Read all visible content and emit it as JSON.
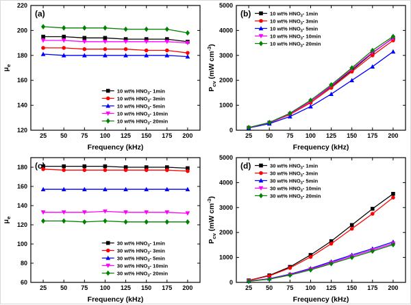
{
  "page": {
    "background": "#ffffff",
    "border_color": "#d9d9d9"
  },
  "chart_data": [
    {
      "panel": "(a)",
      "type": "line",
      "xlabel": "Frequency (kHz)",
      "ylabel": "μ_{e}",
      "x": [
        25,
        50,
        75,
        100,
        125,
        150,
        175,
        200
      ],
      "xticks": [
        25,
        50,
        75,
        100,
        125,
        150,
        175,
        200
      ],
      "yticks": [
        120,
        140,
        160,
        180,
        200,
        220
      ],
      "xlim": [
        10,
        215
      ],
      "ylim": [
        120,
        220
      ],
      "grid": false,
      "legend_pos": "bottom-right",
      "series": [
        {
          "name": "10 wt% HNO_{3}- 1min",
          "color": "#000000",
          "marker": "square",
          "values": [
            195,
            195,
            194,
            194,
            193,
            193,
            193,
            191
          ]
        },
        {
          "name": "10 wt% HNO_{3}- 3min",
          "color": "#ff0000",
          "marker": "circle",
          "values": [
            186,
            186,
            185,
            185,
            185,
            184,
            184,
            182
          ]
        },
        {
          "name": "10 wt% HNO_{3}- 5min",
          "color": "#0000ff",
          "marker": "triangle-up",
          "values": [
            181,
            180,
            180,
            180,
            180,
            180,
            180,
            179
          ]
        },
        {
          "name": "10 wt% HNO_{3}- 10min",
          "color": "#ff00ff",
          "marker": "triangle-down",
          "values": [
            192,
            192,
            191,
            191,
            191,
            191,
            191,
            190
          ]
        },
        {
          "name": "10 wt% HNO_{3}- 20min",
          "color": "#008000",
          "marker": "diamond",
          "values": [
            203,
            202,
            202,
            202,
            201,
            201,
            201,
            198
          ]
        }
      ]
    },
    {
      "panel": "(b)",
      "type": "line",
      "xlabel": "Frequency (kHz)",
      "ylabel": "P_{cv} (mW cm^{-3})",
      "x": [
        25,
        50,
        75,
        100,
        125,
        150,
        175,
        200
      ],
      "xticks": [
        25,
        50,
        75,
        100,
        125,
        150,
        175,
        200
      ],
      "yticks": [
        0,
        1000,
        2000,
        3000,
        4000,
        5000
      ],
      "xlim": [
        10,
        215
      ],
      "ylim": [
        0,
        5000
      ],
      "grid": false,
      "legend_pos": "top-left",
      "series": [
        {
          "name": "10 wt% HNO_{3}- 1min",
          "color": "#000000",
          "marker": "square",
          "values": [
            100,
            300,
            650,
            1150,
            1750,
            2400,
            3100,
            3700
          ]
        },
        {
          "name": "10 wt% HNO_{3}- 3min",
          "color": "#ff0000",
          "marker": "circle",
          "values": [
            100,
            290,
            630,
            1100,
            1700,
            2350,
            3000,
            3600
          ]
        },
        {
          "name": "10 wt% HNO_{3}- 5min",
          "color": "#0000ff",
          "marker": "triangle-up",
          "values": [
            90,
            260,
            550,
            950,
            1450,
            2000,
            2550,
            3150
          ]
        },
        {
          "name": "10 wt% HNO_{3}- 10min",
          "color": "#ff00ff",
          "marker": "triangle-down",
          "values": [
            100,
            300,
            660,
            1150,
            1780,
            2450,
            3120,
            3680
          ]
        },
        {
          "name": "10 wt% HNO_{3}- 20min",
          "color": "#008000",
          "marker": "diamond",
          "values": [
            110,
            310,
            680,
            1200,
            1820,
            2500,
            3200,
            3760
          ]
        }
      ]
    },
    {
      "panel": "(c)",
      "type": "line",
      "xlabel": "Frequency (kHz)",
      "ylabel": "μ_{e}",
      "x": [
        25,
        50,
        75,
        100,
        125,
        150,
        175,
        200
      ],
      "xticks": [
        25,
        50,
        75,
        100,
        125,
        150,
        175,
        200
      ],
      "yticks": [
        60,
        80,
        100,
        120,
        140,
        160,
        180
      ],
      "xlim": [
        10,
        215
      ],
      "ylim": [
        60,
        190
      ],
      "grid": false,
      "legend_pos": "bottom-right",
      "series": [
        {
          "name": "30 wt% HNO_{3}- 1min",
          "color": "#000000",
          "marker": "square",
          "values": [
            181,
            181,
            181,
            181,
            180,
            180,
            180,
            179
          ]
        },
        {
          "name": "30 wt% HNO_{3}- 3min",
          "color": "#ff0000",
          "marker": "circle",
          "values": [
            178,
            177,
            177,
            177,
            177,
            177,
            177,
            176
          ]
        },
        {
          "name": "30 wt% HNO_{3}- 5min",
          "color": "#0000ff",
          "marker": "triangle-up",
          "values": [
            157,
            157,
            157,
            157,
            157,
            157,
            157,
            157
          ]
        },
        {
          "name": "30 wt% HNO_{3}- 10min",
          "color": "#ff00ff",
          "marker": "triangle-down",
          "values": [
            133,
            133,
            133,
            134,
            133,
            133,
            133,
            132
          ]
        },
        {
          "name": "30 wt% HNO_{3}- 20min",
          "color": "#008000",
          "marker": "diamond",
          "values": [
            124,
            124,
            123,
            124,
            123,
            123,
            123,
            123
          ]
        }
      ]
    },
    {
      "panel": "(d)",
      "type": "line",
      "xlabel": "Frequency (kHz)",
      "ylabel": "P_{cv} (mW cm^{-3})",
      "x": [
        25,
        50,
        75,
        100,
        125,
        150,
        175,
        200
      ],
      "xticks": [
        25,
        50,
        75,
        100,
        125,
        150,
        175,
        200
      ],
      "yticks": [
        0,
        1000,
        2000,
        3000,
        4000,
        5000
      ],
      "xlim": [
        10,
        215
      ],
      "ylim": [
        0,
        5000
      ],
      "grid": false,
      "legend_pos": "top-left",
      "series": [
        {
          "name": "30 wt% HNO_{3}- 1min",
          "color": "#000000",
          "marker": "square",
          "values": [
            80,
            280,
            620,
            1100,
            1650,
            2300,
            2950,
            3550
          ]
        },
        {
          "name": "30 wt% HNO_{3}- 3min",
          "color": "#ff0000",
          "marker": "circle",
          "values": [
            75,
            260,
            580,
            1020,
            1550,
            2150,
            2750,
            3400
          ]
        },
        {
          "name": "30 wt% HNO_{3}- 5min",
          "color": "#0000ff",
          "marker": "triangle-up",
          "values": [
            50,
            150,
            330,
            560,
            830,
            1100,
            1350,
            1620
          ]
        },
        {
          "name": "30 wt% HNO_{3}- 10min",
          "color": "#ff00ff",
          "marker": "triangle-down",
          "values": [
            45,
            140,
            310,
            530,
            790,
            1050,
            1300,
            1560
          ]
        },
        {
          "name": "30 wt% HNO_{3}- 20min",
          "color": "#008000",
          "marker": "diamond",
          "values": [
            40,
            130,
            290,
            500,
            750,
            1000,
            1250,
            1510
          ]
        }
      ]
    }
  ]
}
